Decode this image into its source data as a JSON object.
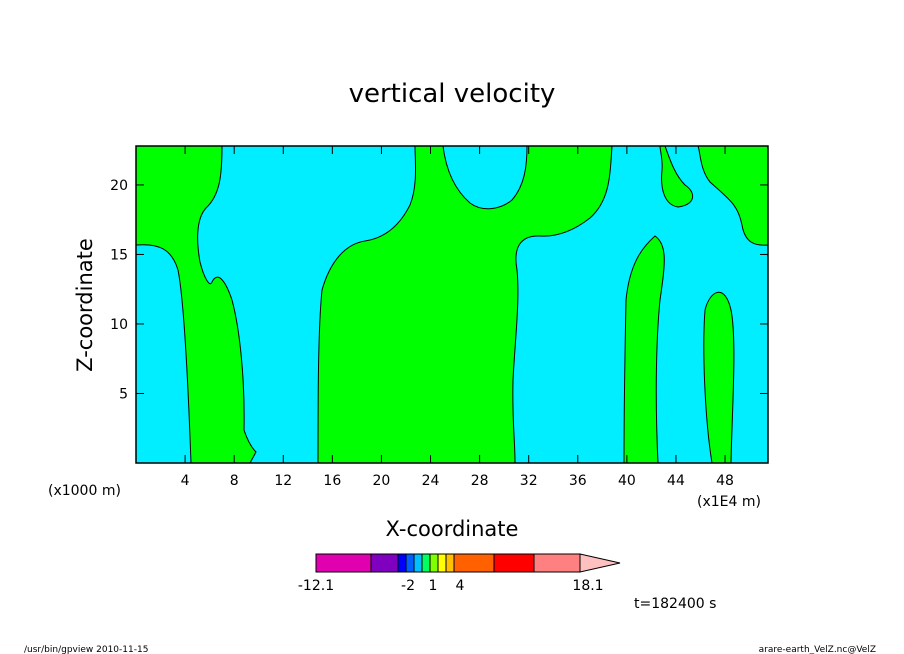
{
  "chart_data": {
    "type": "heatmap",
    "title": "vertical velocity",
    "xlabel": "X-coordinate",
    "ylabel": "Z-coordinate",
    "x_unit_left": "(x1000 m)",
    "x_unit_right": "(x1E4 m)",
    "xlim": [
      0,
      51.5
    ],
    "ylim": [
      0,
      22.8
    ],
    "x_ticks": [
      "4",
      "8",
      "12",
      "16",
      "20",
      "24",
      "28",
      "32",
      "36",
      "40",
      "44",
      "48"
    ],
    "y_ticks": [
      "5",
      "10",
      "15",
      "20"
    ],
    "colors": {
      "positive": "#00ff00",
      "negative": "#00eeff",
      "contour": "#000000"
    },
    "colorbar": {
      "colors": [
        "#e000b0",
        "#8000c0",
        "#0000ff",
        "#0060ff",
        "#00c0ff",
        "#00ff60",
        "#80ff00",
        "#ffff00",
        "#ffc000",
        "#ff6000",
        "#ff0000",
        "#ff8080",
        "#ffc0c0"
      ],
      "labels": [
        "-12.1",
        "-2",
        "1",
        "4",
        "18.1"
      ]
    },
    "time_label": "t=182400 s"
  },
  "footer": {
    "left": "/usr/bin/gpview   2010-11-15",
    "right": "arare-earth_VelZ.nc@VelZ"
  }
}
